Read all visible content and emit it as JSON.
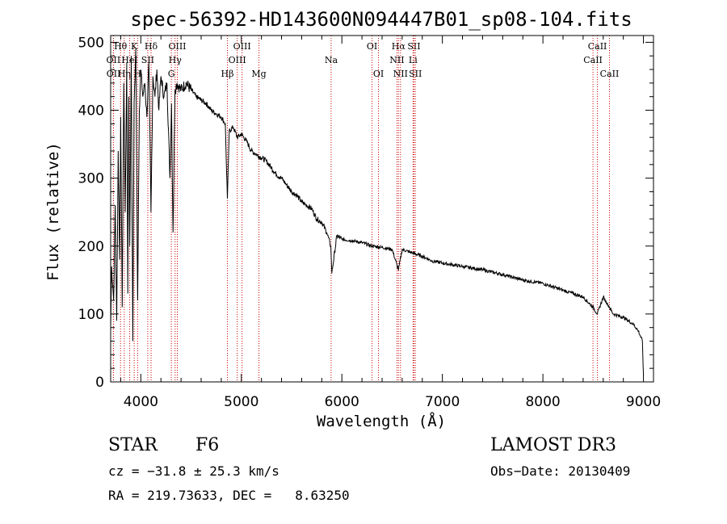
{
  "chart_data": {
    "type": "line",
    "title": "spec-56392-HD143600N094447B01_sp08-104.fits",
    "xlabel": "Wavelength (Å)",
    "ylabel": "Flux (relative)",
    "xlim": [
      3700,
      9100
    ],
    "ylim": [
      0,
      510
    ],
    "xticks": [
      4000,
      5000,
      6000,
      7000,
      8000,
      9000
    ],
    "yticks": [
      0,
      100,
      200,
      300,
      400,
      500
    ],
    "series": [
      {
        "name": "flux",
        "x": [
          3700,
          3710,
          3730,
          3745,
          3760,
          3775,
          3790,
          3800,
          3815,
          3830,
          3845,
          3860,
          3870,
          3880,
          3890,
          3905,
          3920,
          3933,
          3950,
          3968,
          3985,
          4000,
          4020,
          4040,
          4060,
          4080,
          4101,
          4120,
          4140,
          4160,
          4180,
          4200,
          4230,
          4260,
          4290,
          4305,
          4320,
          4340,
          4360,
          4400,
          4450,
          4500,
          4550,
          4600,
          4650,
          4700,
          4750,
          4800,
          4840,
          4861,
          4880,
          4920,
          4960,
          5000,
          5050,
          5100,
          5150,
          5200,
          5250,
          5300,
          5350,
          5400,
          5450,
          5500,
          5550,
          5600,
          5650,
          5700,
          5750,
          5800,
          5850,
          5890,
          5900,
          5950,
          6000,
          6100,
          6200,
          6300,
          6400,
          6500,
          6563,
          6600,
          6700,
          6800,
          6900,
          7000,
          7200,
          7400,
          7600,
          7800,
          8000,
          8200,
          8400,
          8498,
          8542,
          8600,
          8662,
          8700,
          8800,
          8900,
          8950,
          8990,
          9000
        ],
        "values": [
          80,
          170,
          120,
          260,
          90,
          340,
          180,
          390,
          110,
          440,
          250,
          470,
          130,
          420,
          200,
          480,
          60,
          410,
          490,
          120,
          400,
          460,
          420,
          440,
          390,
          470,
          250,
          450,
          420,
          460,
          400,
          450,
          420,
          440,
          300,
          410,
          220,
          430,
          440,
          430,
          440,
          430,
          420,
          415,
          410,
          400,
          395,
          390,
          380,
          270,
          370,
          375,
          360,
          365,
          355,
          340,
          335,
          330,
          325,
          315,
          305,
          300,
          290,
          280,
          275,
          265,
          260,
          255,
          240,
          235,
          220,
          200,
          160,
          215,
          210,
          208,
          205,
          200,
          198,
          195,
          165,
          195,
          190,
          185,
          178,
          175,
          170,
          165,
          158,
          150,
          145,
          135,
          125,
          110,
          100,
          125,
          110,
          100,
          95,
          85,
          75,
          60,
          10
        ]
      }
    ],
    "line_markers": [
      {
        "label": "Hθ",
        "x": 3798,
        "row": 1
      },
      {
        "label": "OII",
        "x": 3727,
        "row": 2
      },
      {
        "label": "OII",
        "x": 3729,
        "row": 3
      },
      {
        "label": "Hη",
        "x": 3835,
        "row": 3
      },
      {
        "label": "HeI",
        "x": 3889,
        "row": 2
      },
      {
        "label": "K",
        "x": 3934,
        "row": 1
      },
      {
        "label": "H",
        "x": 3968,
        "row": 3
      },
      {
        "label": "SII",
        "x": 4069,
        "row": 2
      },
      {
        "label": "Hδ",
        "x": 4102,
        "row": 1
      },
      {
        "label": "OIII",
        "x": 4363,
        "row": 1
      },
      {
        "label": "Hγ",
        "x": 4341,
        "row": 2
      },
      {
        "label": "G",
        "x": 4304,
        "row": 3
      },
      {
        "label": "Hβ",
        "x": 4861,
        "row": 3
      },
      {
        "label": "OIII",
        "x": 5007,
        "row": 1
      },
      {
        "label": "OIII",
        "x": 4959,
        "row": 2
      },
      {
        "label": "Mg",
        "x": 5175,
        "row": 3
      },
      {
        "label": "Na",
        "x": 5893,
        "row": 2
      },
      {
        "label": "OI",
        "x": 6300,
        "row": 1
      },
      {
        "label": "OI",
        "x": 6364,
        "row": 3
      },
      {
        "label": "Hα",
        "x": 6563,
        "row": 1
      },
      {
        "label": "NII",
        "x": 6548,
        "row": 2
      },
      {
        "label": "NII",
        "x": 6583,
        "row": 3
      },
      {
        "label": "SII",
        "x": 6717,
        "row": 1
      },
      {
        "label": "Li",
        "x": 6708,
        "row": 2
      },
      {
        "label": "SII",
        "x": 6731,
        "row": 3
      },
      {
        "label": "CaII",
        "x": 8542,
        "row": 1
      },
      {
        "label": "CaII",
        "x": 8498,
        "row": 2
      },
      {
        "label": "CaII",
        "x": 8662,
        "row": 3
      }
    ]
  },
  "footer": {
    "object_type": "STAR",
    "subclass": "F6",
    "survey": "LAMOST DR3",
    "cz": "cz = −31.8 ± 25.3 km/s",
    "obs_date": "Obs−Date: 20130409",
    "coords": "RA = 219.73633, DEC =   8.63250"
  },
  "colors": {
    "spectrum": "#000000",
    "marker_line": "#cc0000",
    "axis": "#000000"
  }
}
